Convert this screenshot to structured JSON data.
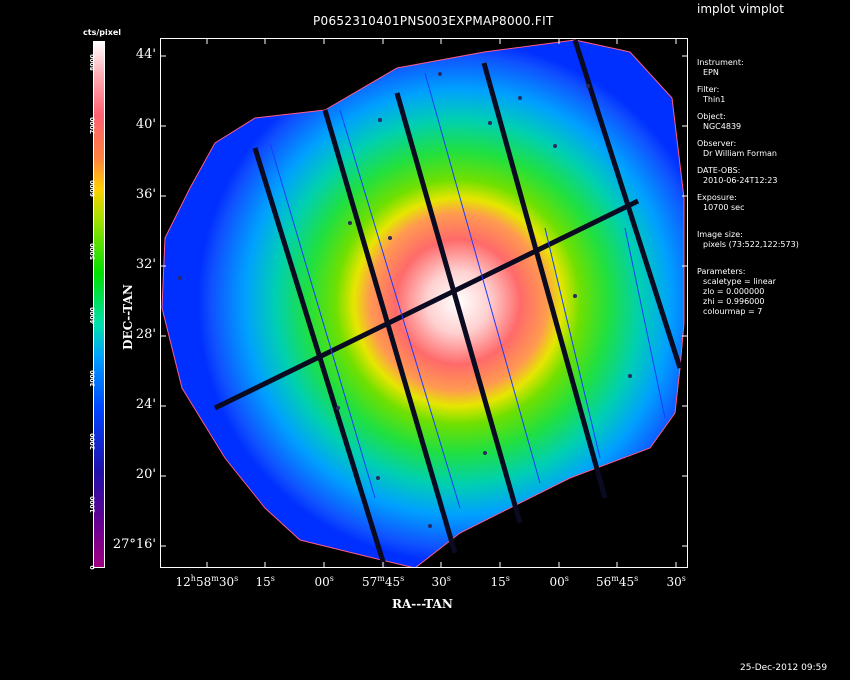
{
  "app_title": "implot vimplot",
  "plot_title": "P0652310401PNS003EXPMAP8000.FIT",
  "colorbar": {
    "label": "cts/pixel",
    "ticks": [
      "0",
      "1000",
      "2000",
      "3000",
      "4000",
      "5000",
      "6000",
      "7000",
      "8000"
    ]
  },
  "axes": {
    "y_title": "DEC--TAN",
    "x_title": "RA---TAN",
    "y_ticks": [
      {
        "deg": "",
        "min": "44'"
      },
      {
        "deg": "",
        "min": "40'"
      },
      {
        "deg": "",
        "min": "36'"
      },
      {
        "deg": "",
        "min": "32'"
      },
      {
        "deg": "",
        "min": "28'"
      },
      {
        "deg": "",
        "min": "24'"
      },
      {
        "deg": "",
        "min": "20'"
      },
      {
        "deg": "27°",
        "min": "16'"
      }
    ],
    "x_ticks": [
      {
        "h": "12",
        "hu": "h",
        "m": "58",
        "mu": "m",
        "s": "30",
        "su": "s"
      },
      {
        "s": "15",
        "su": "s"
      },
      {
        "s": "00",
        "su": "s"
      },
      {
        "m": "57",
        "mu": "m",
        "s": "45",
        "su": "s"
      },
      {
        "s": "30",
        "su": "s"
      },
      {
        "s": "15",
        "su": "s"
      },
      {
        "s": "00",
        "su": "s"
      },
      {
        "m": "56",
        "mu": "m",
        "s": "45",
        "su": "s"
      },
      {
        "s": "30",
        "su": "s"
      }
    ]
  },
  "info": {
    "instrument_label": "Instrument:",
    "instrument": "EPN",
    "filter_label": "Filter:",
    "filter": "Thin1",
    "object_label": "Object:",
    "object": "NGC4839",
    "observer_label": "Observer:",
    "observer": "Dr William Forman",
    "date_label": "DATE-OBS:",
    "date": "2010-06-24T12:23",
    "exposure_label": "Exposure:",
    "exposure": "10700 sec",
    "imagesize_label": "Image size:",
    "imagesize": "pixels (73:522,122:573)",
    "params_label": "Parameters:",
    "p1": "scaletype = linear",
    "p2": "zlo = 0.000000",
    "p3": "zhi = 0.996000",
    "p4": "colourmap =   7"
  },
  "timestamp": "25-Dec-2012 09:59",
  "colors": {
    "background": "#000000",
    "frame": "#ffffff",
    "peak": "#ffffff",
    "edge": "#0044ff",
    "gap": "#0a0a20"
  }
}
